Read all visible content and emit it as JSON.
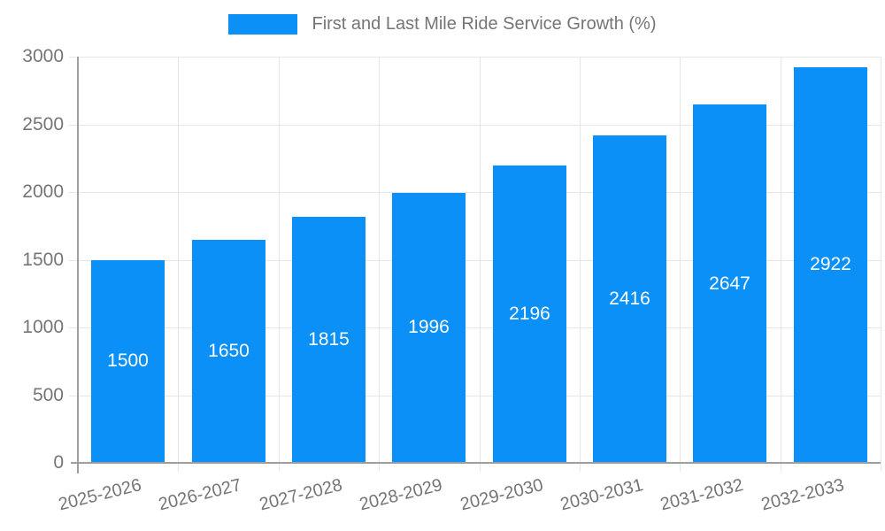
{
  "chart_data": {
    "type": "bar",
    "title": "First and Last Mile Ride Service Growth (%)",
    "categories": [
      "2025-2026",
      "2026-2027",
      "2027-2028",
      "2028-2029",
      "2029-2030",
      "2030-2031",
      "2031-2032",
      "2032-2033"
    ],
    "values": [
      1500,
      1650,
      1815,
      1996,
      2196,
      2416,
      2647,
      2922
    ],
    "xlabel": "",
    "ylabel": "",
    "ylim": [
      0,
      3000
    ],
    "yticks": [
      0,
      500,
      1000,
      1500,
      2000,
      2500,
      3000
    ],
    "grid": true,
    "legend_position": "top",
    "bar_color": "#0b90f8",
    "bar_label_color": "#ffffff",
    "axis_color": "#9e9e9e",
    "grid_color": "#e6e6e6",
    "tick_label_color": "#757575",
    "x_label_rotation_deg": -14
  }
}
